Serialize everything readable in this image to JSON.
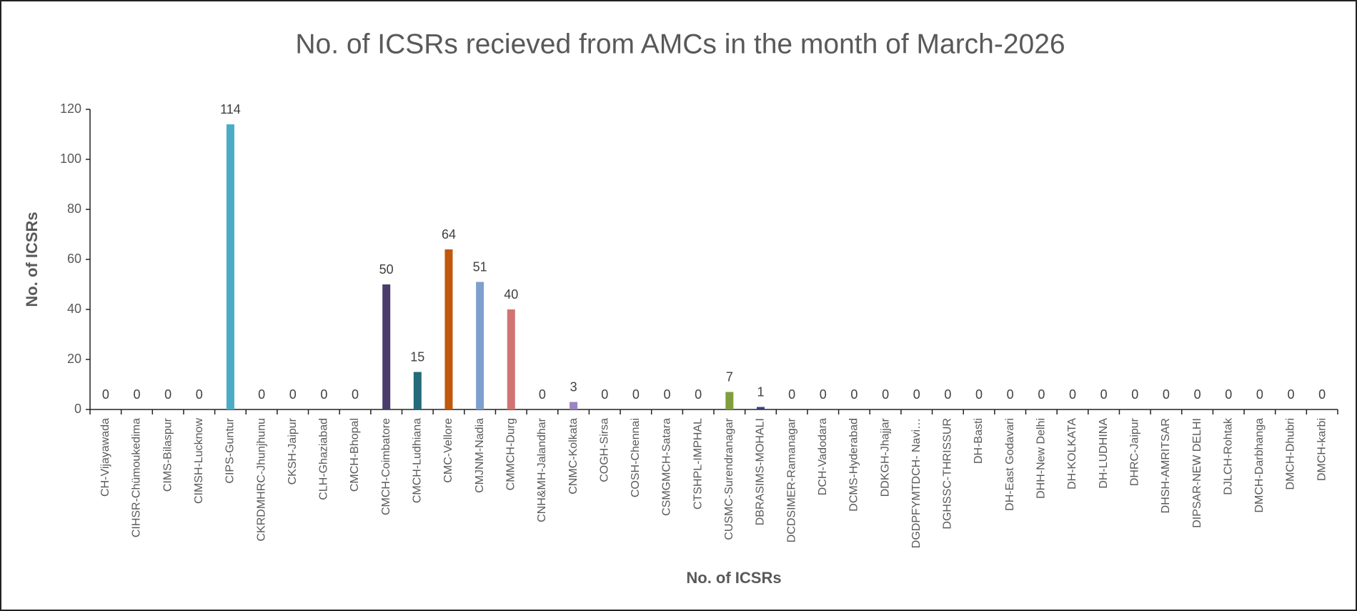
{
  "chart_data": {
    "type": "bar",
    "title": "No. of ICSRs recieved from AMCs in the month of  March-2026",
    "y_label": "No. of ICSRs",
    "x_label": "No. of ICSRs",
    "categories": [
      "CH-Vijayawada",
      "CIHSR-Chümoukedima",
      "CIMS-Bilaspur",
      "CIMSH-Lucknow",
      "CIPS-Guntur",
      "CKRDMHRC-Jhunjhunu",
      "CKSH-Jaipur",
      "CLH-Ghaziabad",
      "CMCH-Bhopal",
      "CMCH-Coimbatore",
      "CMCH-Ludhiana",
      "CMC-Vellore",
      "CMJNM-Nadia",
      "CMMCH-Durg",
      "CNH&MH-Jalandhar",
      "CNMC-Kolkata",
      "COGH-Sirsa",
      "COSH-Chennai",
      "CSMGMCH-Satara",
      "CTSHPL-IMPHAL",
      "CUSMC-Surendranagar",
      "DBRASIMS-MOHALI",
      "DCDSIMER-Ramanagar",
      "DCH-Vadodara",
      "DCMS-Hyderabad",
      "DDKGH-Jhajjar",
      "DGDPFYMTDCH- Navi…",
      "DGHSSC-THRISSUR",
      "DH-Basti",
      "DH-East Godavari",
      "DHH-New Delhi",
      "DH-KOLKATA",
      "DH-LUDHINA",
      "DHRC-Jaipur",
      "DHSH-AMRITSAR",
      "DIPSAR-NEW DELHI",
      "DJLCH-Rohtak",
      "DMCH-Darbhanga",
      "DMCH-Dhubri",
      "DMCH-karbi"
    ],
    "values": [
      0,
      0,
      0,
      0,
      114,
      0,
      0,
      0,
      0,
      50,
      15,
      64,
      51,
      40,
      0,
      3,
      0,
      0,
      0,
      0,
      7,
      1,
      0,
      0,
      0,
      0,
      0,
      0,
      0,
      0,
      0,
      0,
      0,
      0,
      0,
      0,
      0,
      0,
      0,
      0
    ],
    "colors": [
      "#4472c4",
      "#ed7d31",
      "#a5a5a5",
      "#ffc000",
      "#4bacc6",
      "#70ad47",
      "#264478",
      "#9e480e",
      "#636363",
      "#4a3c6b",
      "#246a7a",
      "#c0580e",
      "#7f9fcf",
      "#d07472",
      "#8eb457",
      "#9b86c0",
      "#5b9bd5",
      "#ed7d31",
      "#a5a5a5",
      "#ffc000",
      "#7f9e3e",
      "#3d3f7a",
      "#4472c4",
      "#ed7d31",
      "#a5a5a5",
      "#ffc000",
      "#5b9bd5",
      "#70ad47",
      "#264478",
      "#9e480e",
      "#636363",
      "#997300",
      "#255e91",
      "#43682b",
      "#698ed0",
      "#f1975a",
      "#b7b7b7",
      "#ffcd33",
      "#7cafdd",
      "#8cc168"
    ],
    "ylim": [
      0,
      120
    ],
    "yticks": [
      0,
      20,
      40,
      60,
      80,
      100,
      120
    ]
  }
}
